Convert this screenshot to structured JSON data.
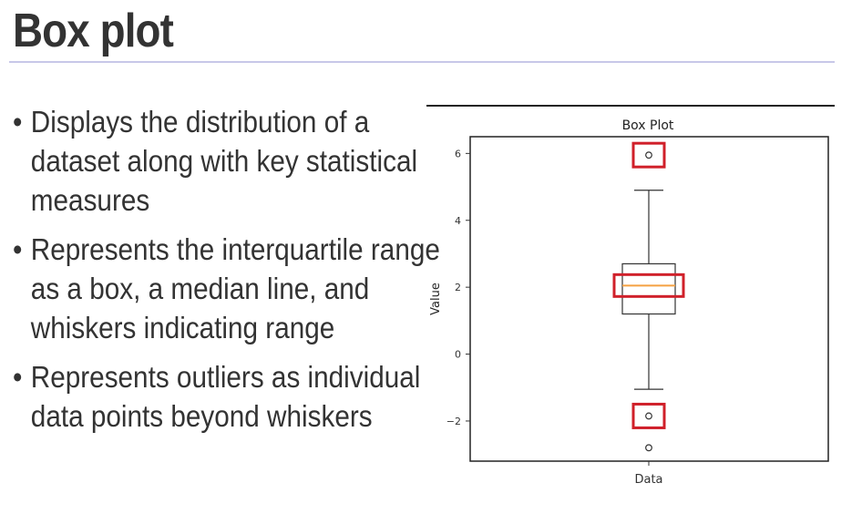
{
  "slide": {
    "title": "Box plot",
    "bullets": [
      "Displays the distribution of a dataset along with key statistical measures",
      "Represents the interquartile range as a box, a median line, and whiskers indicating range",
      "Represents outliers as individual data points beyond whiskers"
    ]
  },
  "colors": {
    "median": "#f5a142",
    "highlight": "#d0202a",
    "axis": "#333333"
  },
  "chart_data": {
    "type": "box",
    "title": "Box Plot",
    "xlabel": "",
    "ylabel": "Value",
    "categories": [
      "Data"
    ],
    "ylim": [
      -3.2,
      6.5
    ],
    "yticks": [
      -2,
      0,
      2,
      4,
      6
    ],
    "ytick_labels": [
      "−2",
      "0",
      "2",
      "4",
      "6"
    ],
    "box": {
      "whisker_low": -1.05,
      "q1": 1.2,
      "median": 2.05,
      "q3": 2.7,
      "whisker_high": 4.9
    },
    "outliers": [
      5.95,
      -1.85,
      -2.8
    ],
    "highlighted": [
      "upper-outlier",
      "median",
      "lower-outlier"
    ]
  }
}
